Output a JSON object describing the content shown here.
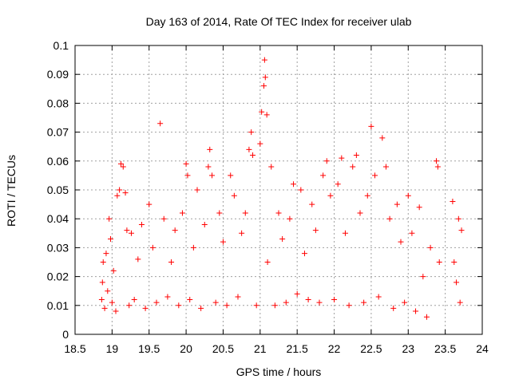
{
  "chart_data": {
    "type": "scatter",
    "title": "Day 163 of 2014, Rate Of TEC Index for receiver ulab",
    "xlabel": "GPS time / hours",
    "ylabel": "ROTI / TECUs",
    "xlim": [
      18.5,
      24
    ],
    "ylim": [
      0,
      0.1
    ],
    "x_ticks": [
      "18.5",
      "19",
      "19.5",
      "20",
      "20.5",
      "21",
      "21.5",
      "22",
      "22.5",
      "23",
      "23.5",
      "24"
    ],
    "y_ticks": [
      "0",
      "0.01",
      "0.02",
      "0.03",
      "0.04",
      "0.05",
      "0.06",
      "0.07",
      "0.08",
      "0.09",
      "0.1"
    ],
    "grid": true,
    "legend": "none",
    "marker": "plus",
    "color": "#ff0000",
    "series": [
      {
        "points": [
          [
            18.86,
            0.012
          ],
          [
            18.87,
            0.018
          ],
          [
            18.88,
            0.025
          ],
          [
            18.9,
            0.009
          ],
          [
            18.92,
            0.028
          ],
          [
            18.94,
            0.015
          ],
          [
            18.96,
            0.04
          ],
          [
            18.98,
            0.033
          ],
          [
            19.0,
            0.011
          ],
          [
            19.02,
            0.022
          ],
          [
            19.05,
            0.008
          ],
          [
            19.07,
            0.048
          ],
          [
            19.1,
            0.05
          ],
          [
            19.12,
            0.059
          ],
          [
            19.15,
            0.058
          ],
          [
            19.18,
            0.049
          ],
          [
            19.2,
            0.036
          ],
          [
            19.23,
            0.01
          ],
          [
            19.26,
            0.035
          ],
          [
            19.3,
            0.012
          ],
          [
            19.35,
            0.026
          ],
          [
            19.4,
            0.038
          ],
          [
            19.45,
            0.009
          ],
          [
            19.5,
            0.045
          ],
          [
            19.55,
            0.03
          ],
          [
            19.6,
            0.011
          ],
          [
            19.65,
            0.073
          ],
          [
            19.7,
            0.04
          ],
          [
            19.75,
            0.013
          ],
          [
            19.8,
            0.025
          ],
          [
            19.85,
            0.036
          ],
          [
            19.9,
            0.01
          ],
          [
            19.95,
            0.042
          ],
          [
            20.0,
            0.059
          ],
          [
            20.02,
            0.055
          ],
          [
            20.05,
            0.012
          ],
          [
            20.1,
            0.03
          ],
          [
            20.15,
            0.05
          ],
          [
            20.2,
            0.009
          ],
          [
            20.25,
            0.038
          ],
          [
            20.3,
            0.058
          ],
          [
            20.32,
            0.064
          ],
          [
            20.35,
            0.055
          ],
          [
            20.4,
            0.011
          ],
          [
            20.45,
            0.042
          ],
          [
            20.5,
            0.032
          ],
          [
            20.55,
            0.01
          ],
          [
            20.6,
            0.055
          ],
          [
            20.65,
            0.048
          ],
          [
            20.7,
            0.013
          ],
          [
            20.75,
            0.035
          ],
          [
            20.8,
            0.042
          ],
          [
            20.85,
            0.064
          ],
          [
            20.88,
            0.07
          ],
          [
            20.9,
            0.062
          ],
          [
            20.95,
            0.01
          ],
          [
            21.0,
            0.066
          ],
          [
            21.02,
            0.077
          ],
          [
            21.05,
            0.086
          ],
          [
            21.06,
            0.095
          ],
          [
            21.07,
            0.089
          ],
          [
            21.09,
            0.076
          ],
          [
            21.1,
            0.025
          ],
          [
            21.15,
            0.058
          ],
          [
            21.2,
            0.01
          ],
          [
            21.25,
            0.042
          ],
          [
            21.3,
            0.033
          ],
          [
            21.35,
            0.011
          ],
          [
            21.4,
            0.04
          ],
          [
            21.45,
            0.052
          ],
          [
            21.5,
            0.014
          ],
          [
            21.55,
            0.05
          ],
          [
            21.6,
            0.028
          ],
          [
            21.65,
            0.012
          ],
          [
            21.7,
            0.045
          ],
          [
            21.75,
            0.036
          ],
          [
            21.8,
            0.011
          ],
          [
            21.85,
            0.055
          ],
          [
            21.9,
            0.06
          ],
          [
            21.95,
            0.048
          ],
          [
            22.0,
            0.012
          ],
          [
            22.05,
            0.052
          ],
          [
            22.1,
            0.061
          ],
          [
            22.15,
            0.035
          ],
          [
            22.2,
            0.01
          ],
          [
            22.25,
            0.058
          ],
          [
            22.3,
            0.062
          ],
          [
            22.35,
            0.042
          ],
          [
            22.4,
            0.011
          ],
          [
            22.45,
            0.048
          ],
          [
            22.5,
            0.072
          ],
          [
            22.55,
            0.055
          ],
          [
            22.6,
            0.013
          ],
          [
            22.65,
            0.068
          ],
          [
            22.7,
            0.058
          ],
          [
            22.75,
            0.04
          ],
          [
            22.8,
            0.009
          ],
          [
            22.85,
            0.045
          ],
          [
            22.9,
            0.032
          ],
          [
            22.95,
            0.011
          ],
          [
            23.0,
            0.048
          ],
          [
            23.05,
            0.035
          ],
          [
            23.1,
            0.008
          ],
          [
            23.15,
            0.044
          ],
          [
            23.2,
            0.02
          ],
          [
            23.25,
            0.006
          ],
          [
            23.3,
            0.03
          ],
          [
            23.38,
            0.06
          ],
          [
            23.4,
            0.058
          ],
          [
            23.42,
            0.025
          ],
          [
            23.6,
            0.046
          ],
          [
            23.62,
            0.025
          ],
          [
            23.65,
            0.018
          ],
          [
            23.68,
            0.04
          ],
          [
            23.7,
            0.011
          ],
          [
            23.72,
            0.036
          ]
        ]
      }
    ]
  }
}
